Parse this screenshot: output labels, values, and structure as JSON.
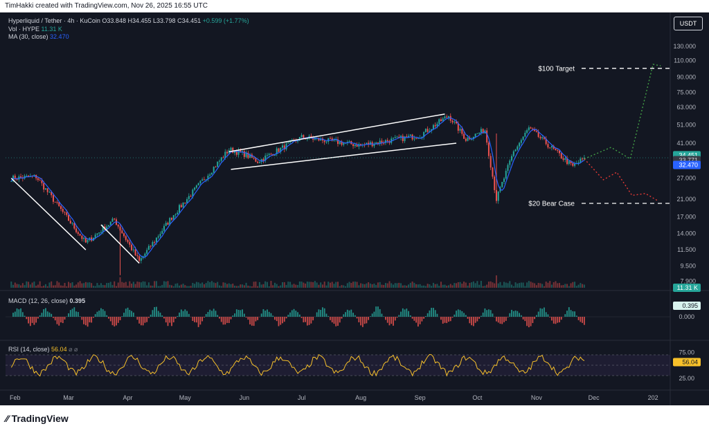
{
  "header": {
    "credit": "TimHakki created with TradingView.com, Nov 26, 2025 16:55 UTC"
  },
  "legend": {
    "symbol": "Hyperliquid / Tether · 4h · KuCoin",
    "o": "O33.848",
    "h": "H34.455",
    "l": "L33.798",
    "c": "C34.451",
    "change": "+0.599 (+1.77%)",
    "vol_label": "Vol · HYPE",
    "vol_value": "11.31 K",
    "ma_label": "MA (30, close)",
    "ma_value": "32.470"
  },
  "quote_button": "USDT",
  "footer": {
    "brand": "TradingView"
  },
  "colors": {
    "bg": "#131722",
    "up": "#26a69a",
    "down": "#ef5350",
    "ma": "#2962ff",
    "rsi": "#f7c12a",
    "bull": "#43a047",
    "bear": "#e53935"
  },
  "chart_data": [
    {
      "type": "candlestick",
      "title": "Hyperliquid / Tether · 4h · KuCoin",
      "y_scale": "log",
      "price_axis": [
        "130.000",
        "110.000",
        "90.000",
        "75.000",
        "63.000",
        "51.000",
        "41.000",
        "34.451",
        "33.771",
        "32.470",
        "27.000",
        "21.000",
        "17.000",
        "14.000",
        "11.500",
        "9.500",
        "7.900"
      ],
      "x_axis": [
        "Feb",
        "Mar",
        "Apr",
        "May",
        "Jun",
        "Jul",
        "Aug",
        "Sep",
        "Oct",
        "Nov",
        "Dec",
        "202"
      ],
      "price_labels": {
        "last": "34.451",
        "prev": "33.771",
        "ma": "32.470",
        "vol": "11.31 K"
      },
      "ylim": [
        7.5,
        140
      ],
      "key_points": [
        {
          "date": "2025-01-30",
          "price": 27
        },
        {
          "date": "2025-02-12",
          "price": 27.5
        },
        {
          "date": "2025-03-10",
          "price": 12.5
        },
        {
          "date": "2025-03-25",
          "price": 16.5
        },
        {
          "date": "2025-04-07",
          "price": 10.0
        },
        {
          "date": "2025-04-25",
          "price": 17.5
        },
        {
          "date": "2025-05-24",
          "price": 38
        },
        {
          "date": "2025-06-01",
          "price": 36
        },
        {
          "date": "2025-06-08",
          "price": 33
        },
        {
          "date": "2025-07-01",
          "price": 44
        },
        {
          "date": "2025-08-01",
          "price": 40
        },
        {
          "date": "2025-09-01",
          "price": 45
        },
        {
          "date": "2025-09-16",
          "price": 57
        },
        {
          "date": "2025-09-25",
          "price": 43
        },
        {
          "date": "2025-10-05",
          "price": 48
        },
        {
          "date": "2025-10-11",
          "price": 21
        },
        {
          "date": "2025-10-20",
          "price": 37
        },
        {
          "date": "2025-10-28",
          "price": 49
        },
        {
          "date": "2025-11-20",
          "price": 31
        },
        {
          "date": "2025-11-26",
          "price": 34.451
        }
      ],
      "annotations": [
        {
          "text": "$100 Target",
          "price": 100
        },
        {
          "text": "$20 Bear Case",
          "price": 20
        }
      ],
      "channels": [
        {
          "start": {
            "date": "2025-01-30",
            "price": 27
          },
          "end": {
            "date": "2025-03-10",
            "price": 11.5
          }
        },
        {
          "start": {
            "date": "2025-03-18",
            "price": 15.5
          },
          "end": {
            "date": "2025-04-07",
            "price": 9.8
          }
        },
        {
          "start": {
            "date": "2025-05-24",
            "price": 37
          },
          "end": {
            "date": "2025-09-14",
            "price": 58
          }
        },
        {
          "start": {
            "date": "2025-05-25",
            "price": 30
          },
          "end": {
            "date": "2025-09-20",
            "price": 41
          }
        }
      ],
      "projections": [
        {
          "name": "bull",
          "points": [
            {
              "date": "2025-11-26",
              "price": 34
            },
            {
              "date": "2025-12-10",
              "price": 39
            },
            {
              "date": "2025-12-20",
              "price": 34
            },
            {
              "date": "2026-01-01",
              "price": 105
            },
            {
              "date": "2026-01-05",
              "price": 103
            }
          ]
        },
        {
          "name": "bear",
          "points": [
            {
              "date": "2025-11-26",
              "price": 34
            },
            {
              "date": "2025-12-06",
              "price": 26.5
            },
            {
              "date": "2025-12-13",
              "price": 29
            },
            {
              "date": "2025-12-21",
              "price": 22
            },
            {
              "date": "2025-12-28",
              "price": 22.5
            },
            {
              "date": "2026-01-04",
              "price": 20.5
            }
          ]
        }
      ]
    },
    {
      "type": "bar",
      "title": "MACD (12, 26, close)",
      "value": "0.395",
      "y_axis": [
        "0.395",
        "0.000"
      ]
    },
    {
      "type": "line",
      "title": "RSI (14, close)",
      "value": "56.04",
      "y_axis": [
        "75.00",
        "56.04",
        "25.00"
      ],
      "bands": [
        70,
        50,
        30
      ],
      "ylim": [
        10,
        90
      ]
    }
  ]
}
